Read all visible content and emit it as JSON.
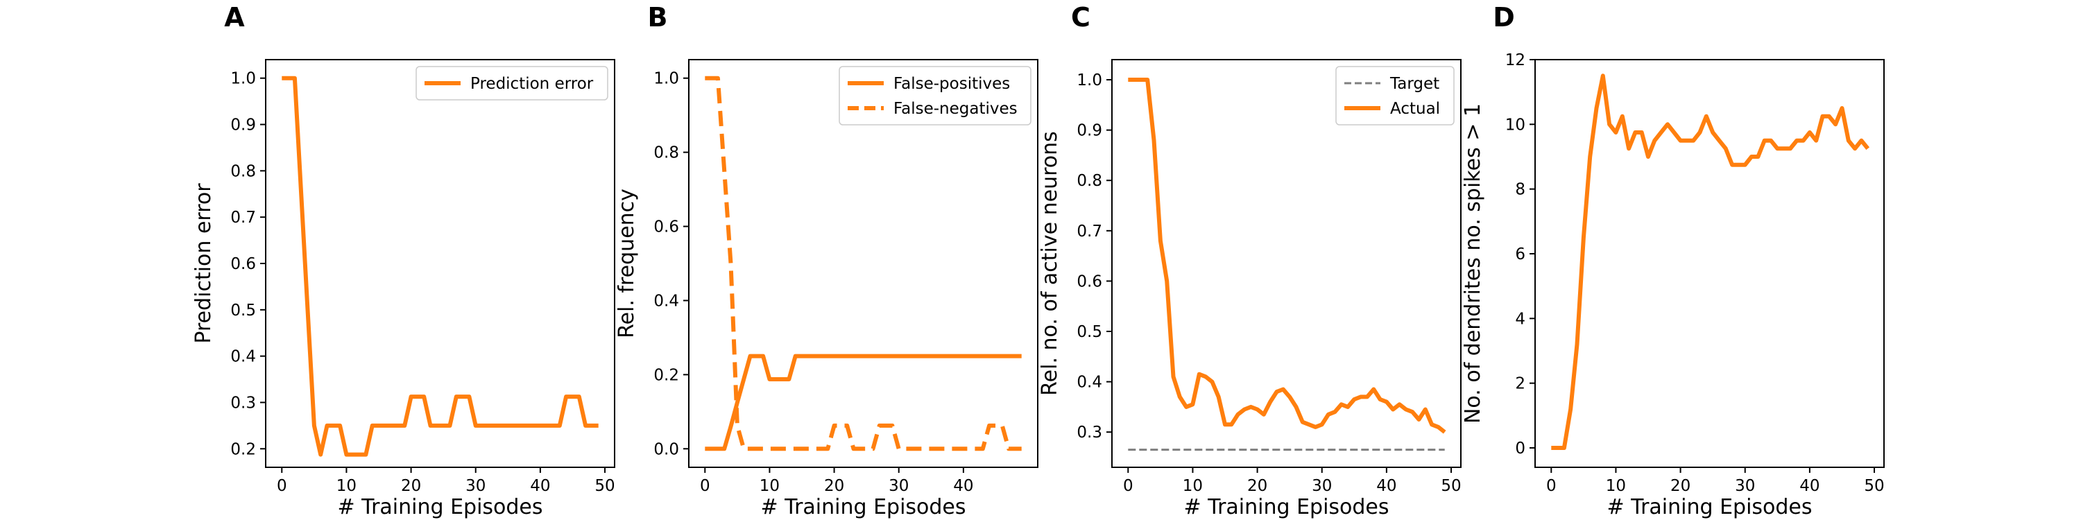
{
  "colors": {
    "series": "#ff7f0e",
    "target": "#7f7f7f",
    "axis": "#000000"
  },
  "chart_data": [
    {
      "panel": "A",
      "type": "line",
      "xlabel": "# Training Episodes",
      "ylabel": "Prediction error",
      "xlim": [
        -2.5,
        51.5
      ],
      "ylim": [
        0.16,
        1.04
      ],
      "xticks": [
        0,
        10,
        20,
        30,
        40,
        50
      ],
      "yticks": [
        0.2,
        0.3,
        0.4,
        0.5,
        0.6,
        0.7,
        0.8,
        0.9,
        1.0
      ],
      "ytick_decimals": 1,
      "legend": "top-right",
      "series": [
        {
          "name": "Prediction error",
          "style": "solid",
          "x": [
            0,
            1,
            2,
            3,
            4,
            5,
            6,
            7,
            8,
            9,
            10,
            11,
            12,
            13,
            14,
            15,
            16,
            17,
            18,
            19,
            20,
            21,
            22,
            23,
            24,
            25,
            26,
            27,
            28,
            29,
            30,
            31,
            32,
            33,
            34,
            35,
            36,
            37,
            38,
            39,
            40,
            41,
            42,
            43,
            44,
            45,
            46,
            47,
            48,
            49
          ],
          "y": [
            1.0,
            1.0,
            1.0,
            0.75,
            0.5,
            0.25,
            0.1875,
            0.25,
            0.25,
            0.25,
            0.1875,
            0.1875,
            0.1875,
            0.1875,
            0.25,
            0.25,
            0.25,
            0.25,
            0.25,
            0.25,
            0.3125,
            0.3125,
            0.3125,
            0.25,
            0.25,
            0.25,
            0.25,
            0.3125,
            0.3125,
            0.3125,
            0.25,
            0.25,
            0.25,
            0.25,
            0.25,
            0.25,
            0.25,
            0.25,
            0.25,
            0.25,
            0.25,
            0.25,
            0.25,
            0.25,
            0.3125,
            0.3125,
            0.3125,
            0.25,
            0.25,
            0.25
          ]
        }
      ]
    },
    {
      "panel": "B",
      "type": "line",
      "xlabel": "# Training Episodes",
      "ylabel": "Rel. frequency",
      "xlim": [
        -2.5,
        51.5
      ],
      "ylim": [
        -0.05,
        1.05
      ],
      "xticks": [
        0,
        10,
        20,
        30,
        40
      ],
      "yticks": [
        0.0,
        0.2,
        0.4,
        0.6,
        0.8,
        1.0
      ],
      "ytick_decimals": 1,
      "legend": "top-right",
      "series": [
        {
          "name": "False-positives",
          "style": "solid",
          "x": [
            0,
            1,
            2,
            3,
            4,
            5,
            6,
            7,
            8,
            9,
            10,
            11,
            12,
            13,
            14,
            15,
            16,
            17,
            18,
            19,
            20,
            21,
            22,
            23,
            24,
            25,
            26,
            27,
            28,
            29,
            30,
            31,
            32,
            33,
            34,
            35,
            36,
            37,
            38,
            39,
            40,
            41,
            42,
            43,
            44,
            45,
            46,
            47,
            48,
            49
          ],
          "y": [
            0,
            0,
            0,
            0,
            0.06,
            0.125,
            0.1875,
            0.25,
            0.25,
            0.25,
            0.1875,
            0.1875,
            0.1875,
            0.1875,
            0.25,
            0.25,
            0.25,
            0.25,
            0.25,
            0.25,
            0.25,
            0.25,
            0.25,
            0.25,
            0.25,
            0.25,
            0.25,
            0.25,
            0.25,
            0.25,
            0.25,
            0.25,
            0.25,
            0.25,
            0.25,
            0.25,
            0.25,
            0.25,
            0.25,
            0.25,
            0.25,
            0.25,
            0.25,
            0.25,
            0.25,
            0.25,
            0.25,
            0.25,
            0.25,
            0.25
          ]
        },
        {
          "name": "False-negatives",
          "style": "dashed",
          "x": [
            0,
            1,
            2,
            3,
            4,
            5,
            6,
            7,
            8,
            9,
            10,
            11,
            12,
            13,
            14,
            15,
            16,
            17,
            18,
            19,
            20,
            21,
            22,
            23,
            24,
            25,
            26,
            27,
            28,
            29,
            30,
            31,
            32,
            33,
            34,
            35,
            36,
            37,
            38,
            39,
            40,
            41,
            42,
            43,
            44,
            45,
            46,
            47,
            48,
            49
          ],
          "y": [
            1.0,
            1.0,
            1.0,
            0.75,
            0.5,
            0.0625,
            0.0,
            0.0,
            0.0,
            0.0,
            0.0,
            0.0,
            0.0,
            0.0,
            0.0,
            0.0,
            0.0,
            0.0,
            0.0,
            0.0,
            0.0625,
            0.0625,
            0.0625,
            0.0,
            0.0,
            0.0,
            0.0,
            0.0625,
            0.0625,
            0.0625,
            0.0,
            0.0,
            0.0,
            0.0,
            0.0,
            0.0,
            0.0,
            0.0,
            0.0,
            0.0,
            0.0,
            0.0,
            0.0,
            0.0,
            0.0625,
            0.0625,
            0.0625,
            0.0,
            0.0,
            0.0
          ]
        }
      ]
    },
    {
      "panel": "C",
      "type": "line",
      "xlabel": "# Training Episodes",
      "ylabel": "Rel. no. of active neurons",
      "xlim": [
        -2.5,
        51.5
      ],
      "ylim": [
        0.23,
        1.04
      ],
      "xticks": [
        0,
        10,
        20,
        30,
        40,
        50
      ],
      "yticks": [
        0.3,
        0.4,
        0.5,
        0.6,
        0.7,
        0.8,
        0.9,
        1.0
      ],
      "ytick_decimals": 1,
      "legend": "top-right",
      "series": [
        {
          "name": "Target",
          "style": "dashed-thin",
          "x": [
            0,
            49
          ],
          "y": [
            0.265,
            0.265
          ]
        },
        {
          "name": "Actual",
          "style": "solid",
          "x": [
            0,
            1,
            2,
            3,
            4,
            5,
            6,
            7,
            8,
            9,
            10,
            11,
            12,
            13,
            14,
            15,
            16,
            17,
            18,
            19,
            20,
            21,
            22,
            23,
            24,
            25,
            26,
            27,
            28,
            29,
            30,
            31,
            32,
            33,
            34,
            35,
            36,
            37,
            38,
            39,
            40,
            41,
            42,
            43,
            44,
            45,
            46,
            47,
            48,
            49
          ],
          "y": [
            1.0,
            1.0,
            1.0,
            1.0,
            0.88,
            0.68,
            0.6,
            0.41,
            0.37,
            0.35,
            0.355,
            0.415,
            0.41,
            0.4,
            0.37,
            0.315,
            0.315,
            0.335,
            0.345,
            0.35,
            0.345,
            0.335,
            0.36,
            0.38,
            0.385,
            0.37,
            0.35,
            0.32,
            0.315,
            0.31,
            0.315,
            0.335,
            0.34,
            0.355,
            0.35,
            0.365,
            0.37,
            0.37,
            0.385,
            0.365,
            0.36,
            0.345,
            0.355,
            0.345,
            0.34,
            0.325,
            0.345,
            0.315,
            0.31,
            0.3
          ]
        }
      ]
    },
    {
      "panel": "D",
      "type": "line",
      "xlabel": "# Training Episodes",
      "ylabel": "No. of dendrites no. spikes > 1",
      "xlim": [
        -2.5,
        51.5
      ],
      "ylim": [
        -0.6,
        12.0
      ],
      "xticks": [
        0,
        10,
        20,
        30,
        40,
        50
      ],
      "yticks": [
        0,
        2,
        4,
        6,
        8,
        10,
        12
      ],
      "ytick_decimals": 0,
      "legend": "none",
      "series": [
        {
          "name": "",
          "style": "solid",
          "x": [
            0,
            1,
            2,
            3,
            4,
            5,
            6,
            7,
            8,
            9,
            10,
            11,
            12,
            13,
            14,
            15,
            16,
            17,
            18,
            19,
            20,
            21,
            22,
            23,
            24,
            25,
            26,
            27,
            28,
            29,
            30,
            31,
            32,
            33,
            34,
            35,
            36,
            37,
            38,
            39,
            40,
            41,
            42,
            43,
            44,
            45,
            46,
            47,
            48,
            49
          ],
          "y": [
            0,
            0,
            0,
            1.2,
            3.2,
            6.5,
            9.0,
            10.5,
            11.5,
            10.0,
            9.75,
            10.25,
            9.25,
            9.75,
            9.75,
            9.0,
            9.5,
            9.75,
            10.0,
            9.75,
            9.5,
            9.5,
            9.5,
            9.75,
            10.25,
            9.75,
            9.5,
            9.25,
            8.75,
            8.75,
            8.75,
            9.0,
            9.0,
            9.5,
            9.5,
            9.25,
            9.25,
            9.25,
            9.5,
            9.5,
            9.75,
            9.5,
            10.25,
            10.25,
            10.0,
            10.5,
            9.5,
            9.25,
            9.5,
            9.25
          ]
        }
      ]
    }
  ]
}
